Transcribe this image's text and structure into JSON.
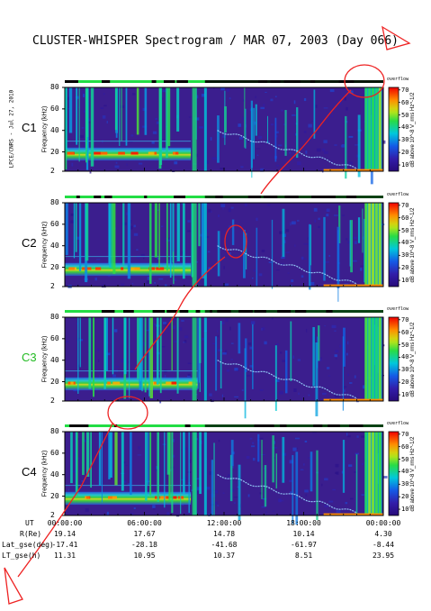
{
  "title": "CLUSTER-WHISPER Spectrogram / MAR 07, 2003 (Day 066)",
  "side_tag": "LPCE/CNRS - Jul 27, 2010",
  "chart_data": {
    "type": "heatmap",
    "panels": [
      {
        "name": "C1",
        "label_color": "#000000"
      },
      {
        "name": "C2",
        "label_color": "#000000"
      },
      {
        "name": "C3",
        "label_color": "#22bb22"
      },
      {
        "name": "C4",
        "label_color": "#000000"
      }
    ],
    "ylabel": "Frequency (kHz)",
    "yticks": [
      80,
      60,
      40,
      20,
      2
    ],
    "ylim": [
      2,
      80
    ],
    "colorbar": {
      "label": "dB above 10^-8 V_rms Hz^-1/2",
      "ticks": [
        70,
        60,
        50,
        40,
        30,
        20,
        10
      ],
      "range": [
        5,
        72
      ],
      "header": "overflow"
    },
    "x_ticks": [
      "00:00:00",
      "06:00:00",
      "12:00:00",
      "18:00:00",
      "00:00:00"
    ],
    "x_range_hours": [
      0,
      24
    ],
    "orbit": {
      "rows": [
        {
          "label": "UT",
          "values": []
        },
        {
          "label": "R(Re)",
          "values": [
            "19.14",
            "17.67",
            "14.78",
            "10.14",
            "4.30"
          ]
        },
        {
          "label": "Lat_gse(deg)",
          "values": [
            "-17.41",
            "-28.18",
            "-41.68",
            "-61.97",
            "-8.44"
          ]
        },
        {
          "label": "LT_gse(h)",
          "values": [
            "11.31",
            "10.95",
            "10.37",
            "8.51",
            "23.95"
          ]
        }
      ]
    }
  },
  "colors": {
    "background": "#3a1f8c",
    "band": "#22cc22",
    "hot": "#ff2a00",
    "annotation": "#ee2222"
  }
}
